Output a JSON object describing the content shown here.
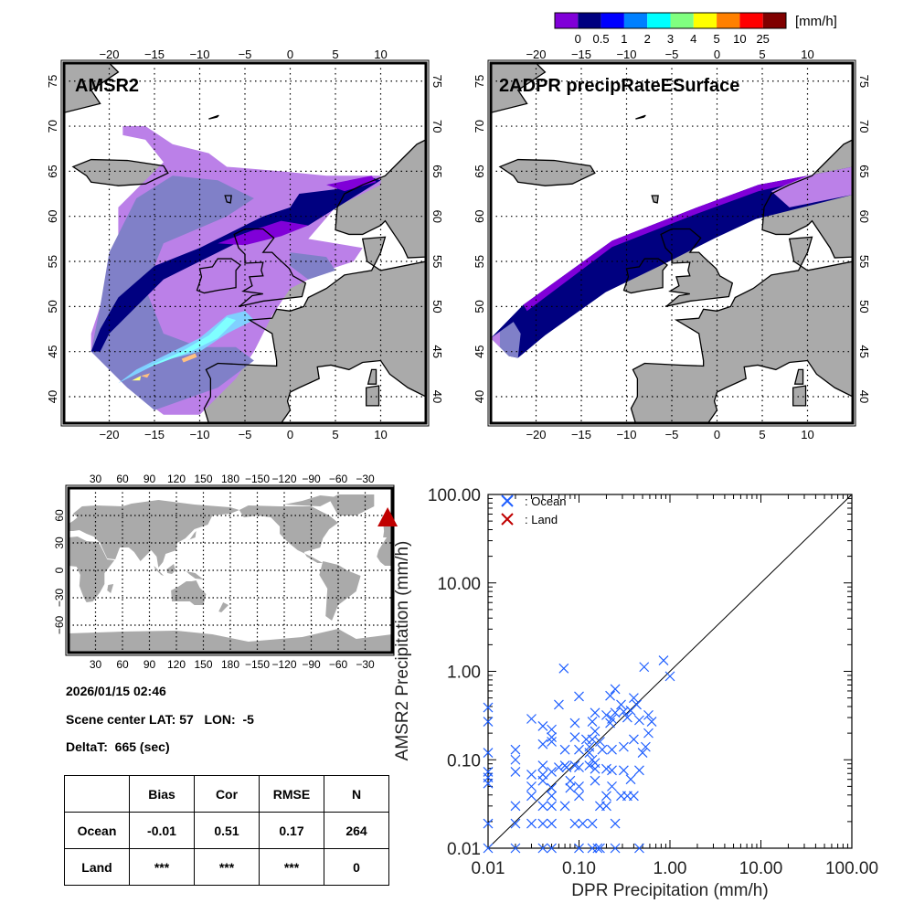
{
  "colorbar": {
    "unit": "[mm/h]",
    "colors": [
      "#8000d8",
      "#000080",
      "#0000ff",
      "#0080ff",
      "#00ffff",
      "#80ff80",
      "#ffff00",
      "#ff8000",
      "#ff0000",
      "#800000"
    ],
    "labels": [
      "0",
      "0.5",
      "1",
      "2",
      "3",
      "4",
      "5",
      "10",
      "25"
    ]
  },
  "maps": {
    "lon_labels": [
      "−20",
      "−15",
      "−10",
      "−5",
      "0",
      "5",
      "10"
    ],
    "lat_labels": [
      "40",
      "45",
      "50",
      "55",
      "60",
      "65",
      "70",
      "75"
    ],
    "left_title": "AMSR2",
    "right_title": "2ADPR precipRateESurface",
    "land_color": "#aaaaaa"
  },
  "world_map": {
    "lon_labels": [
      "30",
      "60",
      "90",
      "120",
      "150",
      "180",
      "−150",
      "−120",
      "−90",
      "−60",
      "−30"
    ],
    "lat_labels": [
      "60",
      "30",
      "0",
      "−30",
      "−60"
    ],
    "marker_color": "#c00000",
    "scene_lat": 57,
    "scene_lon": -5
  },
  "info": {
    "datetime": "2026/01/15 02:46",
    "scene_center": "Scene center LAT: 57   LON:  -5",
    "delta_t": "DeltaT:  665 (sec)"
  },
  "stats": {
    "headers": [
      "",
      "Bias",
      "Cor",
      "RMSE",
      "N"
    ],
    "rows": [
      {
        "label": "Ocean",
        "bias": "-0.01",
        "cor": "0.51",
        "rmse": "0.17",
        "n": "264"
      },
      {
        "label": "Land",
        "bias": "***",
        "cor": "***",
        "rmse": "***",
        "n": "0"
      }
    ]
  },
  "chart_data": {
    "type": "scatter",
    "xscale": "log",
    "yscale": "log",
    "xlim": [
      0.01,
      100
    ],
    "ylim": [
      0.01,
      100
    ],
    "xlabel": "DPR Precipitation (mm/h)",
    "ylabel": "AMSR2 Precipitation (mm/h)",
    "xtick_labels": [
      "0.01",
      "0.10",
      "1.00",
      "10.00",
      "100.00"
    ],
    "ytick_labels": [
      "0.01",
      "0.10",
      "1.00",
      "10.00",
      "100.00"
    ],
    "tick_values": [
      0.01,
      0.1,
      1,
      10,
      100
    ],
    "legend": {
      "placement": "top-left",
      "entries": [
        {
          "label": ": Ocean",
          "color": "#1f5fff"
        },
        {
          "label": ": Land",
          "color": "#c00000"
        }
      ]
    },
    "reference_line": "1:1",
    "series": [
      {
        "name": "Ocean",
        "color": "#1f5fff",
        "points": [
          [
            0.068,
            1.08
          ],
          [
            0.52,
            1.12
          ],
          [
            0.85,
            1.33
          ],
          [
            1.0,
            0.88
          ],
          [
            0.1,
            0.52
          ],
          [
            0.06,
            0.42
          ],
          [
            0.22,
            0.53
          ],
          [
            0.25,
            0.63
          ],
          [
            0.01,
            0.39
          ],
          [
            0.01,
            0.27
          ],
          [
            0.03,
            0.29
          ],
          [
            0.04,
            0.24
          ],
          [
            0.05,
            0.22
          ],
          [
            0.05,
            0.18
          ],
          [
            0.05,
            0.16
          ],
          [
            0.04,
            0.15
          ],
          [
            0.07,
            0.13
          ],
          [
            0.09,
            0.26
          ],
          [
            0.09,
            0.18
          ],
          [
            0.1,
            0.13
          ],
          [
            0.14,
            0.27
          ],
          [
            0.15,
            0.34
          ],
          [
            0.15,
            0.21
          ],
          [
            0.2,
            0.32
          ],
          [
            0.22,
            0.26
          ],
          [
            0.23,
            0.29
          ],
          [
            0.25,
            0.34
          ],
          [
            0.29,
            0.42
          ],
          [
            0.31,
            0.35
          ],
          [
            0.34,
            0.3
          ],
          [
            0.37,
            0.36
          ],
          [
            0.4,
            0.5
          ],
          [
            0.43,
            0.42
          ],
          [
            0.46,
            0.28
          ],
          [
            0.58,
            0.32
          ],
          [
            0.63,
            0.27
          ],
          [
            0.58,
            0.2
          ],
          [
            0.54,
            0.14
          ],
          [
            0.5,
            0.12
          ],
          [
            0.4,
            0.17
          ],
          [
            0.31,
            0.14
          ],
          [
            0.23,
            0.13
          ],
          [
            0.18,
            0.13
          ],
          [
            0.17,
            0.16
          ],
          [
            0.14,
            0.17
          ],
          [
            0.12,
            0.17
          ],
          [
            0.13,
            0.14
          ],
          [
            0.13,
            0.12
          ],
          [
            0.14,
            0.1
          ],
          [
            0.15,
            0.092
          ],
          [
            0.13,
            0.086
          ],
          [
            0.1,
            0.082
          ],
          [
            0.09,
            0.086
          ],
          [
            0.07,
            0.086
          ],
          [
            0.05,
            0.073
          ],
          [
            0.04,
            0.086
          ],
          [
            0.04,
            0.068
          ],
          [
            0.03,
            0.068
          ],
          [
            0.04,
            0.058
          ],
          [
            0.03,
            0.05
          ],
          [
            0.03,
            0.039
          ],
          [
            0.05,
            0.048
          ],
          [
            0.05,
            0.039
          ],
          [
            0.08,
            0.058
          ],
          [
            0.08,
            0.048
          ],
          [
            0.1,
            0.05
          ],
          [
            0.1,
            0.039
          ],
          [
            0.15,
            0.079
          ],
          [
            0.15,
            0.058
          ],
          [
            0.2,
            0.079
          ],
          [
            0.23,
            0.076
          ],
          [
            0.23,
            0.05
          ],
          [
            0.2,
            0.039
          ],
          [
            0.29,
            0.039
          ],
          [
            0.34,
            0.039
          ],
          [
            0.4,
            0.039
          ],
          [
            0.31,
            0.076
          ],
          [
            0.37,
            0.06
          ],
          [
            0.46,
            0.076
          ],
          [
            0.02,
            0.13
          ],
          [
            0.02,
            0.1
          ],
          [
            0.02,
            0.073
          ],
          [
            0.01,
            0.12
          ],
          [
            0.01,
            0.073
          ],
          [
            0.01,
            0.063
          ],
          [
            0.01,
            0.054
          ],
          [
            0.02,
            0.03
          ],
          [
            0.04,
            0.03
          ],
          [
            0.05,
            0.03
          ],
          [
            0.07,
            0.03
          ],
          [
            0.02,
            0.019
          ],
          [
            0.03,
            0.019
          ],
          [
            0.04,
            0.019
          ],
          [
            0.05,
            0.019
          ],
          [
            0.09,
            0.019
          ],
          [
            0.11,
            0.019
          ],
          [
            0.14,
            0.019
          ],
          [
            0.25,
            0.019
          ],
          [
            0.01,
            0.019
          ],
          [
            0.17,
            0.03
          ],
          [
            0.2,
            0.03
          ],
          [
            0.01,
            0.01
          ],
          [
            0.02,
            0.01
          ],
          [
            0.04,
            0.01
          ],
          [
            0.05,
            0.01
          ],
          [
            0.1,
            0.01
          ],
          [
            0.14,
            0.01
          ],
          [
            0.16,
            0.01
          ],
          [
            0.17,
            0.01
          ],
          [
            0.25,
            0.01
          ],
          [
            0.46,
            0.01
          ],
          [
            0.06,
            0.082
          ],
          [
            0.073,
            0.082
          ]
        ]
      }
    ]
  }
}
